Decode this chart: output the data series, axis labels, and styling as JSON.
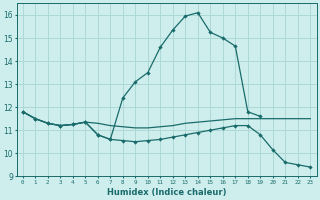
{
  "xlabel": "Humidex (Indice chaleur)",
  "bg_color": "#ceeeed",
  "grid_color": "#aed8d5",
  "line_color": "#1a6b6b",
  "xlim": [
    -0.5,
    23.5
  ],
  "ylim": [
    9,
    16.5
  ],
  "xticks": [
    0,
    1,
    2,
    3,
    4,
    5,
    6,
    7,
    8,
    9,
    10,
    11,
    12,
    13,
    14,
    15,
    16,
    17,
    18,
    19,
    20,
    21,
    22,
    23
  ],
  "yticks": [
    9,
    10,
    11,
    12,
    13,
    14,
    15,
    16
  ],
  "series": [
    {
      "x": [
        0,
        1,
        2,
        3,
        4,
        5,
        6,
        7,
        8,
        9,
        10,
        11,
        12,
        13,
        14,
        15,
        16,
        17,
        18,
        19,
        20,
        21,
        22,
        23
      ],
      "y": [
        11.8,
        11.5,
        11.3,
        11.2,
        11.25,
        11.35,
        11.3,
        11.2,
        11.15,
        11.1,
        11.1,
        11.15,
        11.2,
        11.3,
        11.35,
        11.4,
        11.45,
        11.5,
        11.5,
        11.5,
        11.5,
        11.5,
        11.5,
        11.5
      ],
      "markers": false
    },
    {
      "x": [
        0,
        1,
        2,
        3,
        4,
        5,
        6,
        7,
        8,
        9,
        10,
        11,
        12,
        13,
        14,
        15,
        16,
        17,
        18,
        19,
        20,
        21,
        22,
        23
      ],
      "y": [
        11.8,
        11.5,
        11.3,
        11.2,
        11.25,
        11.35,
        10.8,
        10.6,
        12.4,
        13.1,
        13.5,
        14.6,
        15.35,
        15.95,
        16.1,
        15.25,
        15.0,
        14.65,
        11.8,
        11.6,
        null,
        null,
        null,
        null
      ],
      "markers": true
    },
    {
      "x": [
        0,
        1,
        2,
        3,
        4,
        5,
        6,
        7,
        8,
        9,
        10,
        11,
        12,
        13,
        14,
        15,
        16,
        17,
        18,
        19,
        20,
        21,
        22,
        23
      ],
      "y": [
        11.8,
        11.5,
        11.3,
        11.2,
        11.25,
        11.35,
        10.8,
        10.6,
        10.55,
        10.5,
        10.55,
        10.6,
        10.7,
        10.8,
        10.9,
        11.0,
        11.1,
        11.2,
        11.2,
        10.8,
        10.15,
        9.6,
        9.5,
        9.4
      ],
      "markers": true
    }
  ]
}
